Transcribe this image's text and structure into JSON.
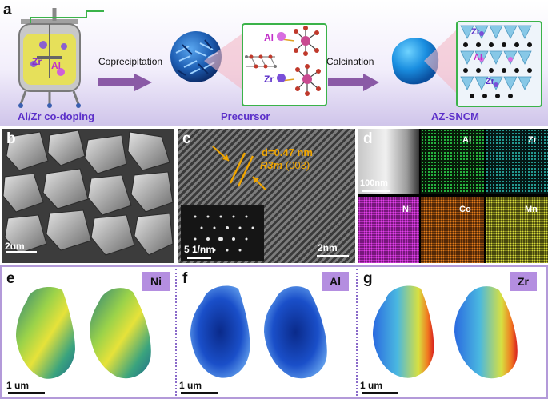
{
  "panel_a": {
    "letter": "a",
    "step1_label": "Al/Zr co-doping",
    "reactor_el1": "Zr",
    "reactor_el2": "Al",
    "arrow1_label": "Coprecipitation",
    "step2_label": "Precursor",
    "inset_el1": "Al",
    "inset_el2": "Zr",
    "arrow2_label": "Calcination",
    "step3_label": "AZ-SNCM",
    "lattice_zr": "Zr",
    "lattice_al": "Al"
  },
  "panel_b": {
    "letter": "b",
    "scale": "2um"
  },
  "panel_c": {
    "letter": "c",
    "dspacing": "d=0.47 nm",
    "plane_group": "R3m",
    "plane_index": "(003)",
    "inset_scale": "5 1/nm",
    "scale": "2nm"
  },
  "panel_d": {
    "letter": "d",
    "scale": "100nm",
    "maps": [
      "Al",
      "Zr",
      "Ni",
      "Co",
      "Mn"
    ]
  },
  "panel_e": {
    "letter": "e",
    "element": "Ni",
    "scale": "1 um"
  },
  "panel_f": {
    "letter": "f",
    "element": "Al",
    "scale": "1 um"
  },
  "panel_g": {
    "letter": "g",
    "element": "Zr",
    "scale": "1 um"
  },
  "colors": {
    "banner_top": "#ffffff",
    "banner_bottom": "#cfc4ea",
    "step_label": "#5b2fc9",
    "element_tag_bg": "#b48ee0",
    "frame_purple": "#b39ad9",
    "dspacing_text": "#f0a500",
    "map_al": "#2bd04a",
    "map_zr": "#2ab3a8",
    "map_ni": "#d030d8",
    "map_co": "#e07a1a",
    "map_mn": "#d4d63a"
  }
}
